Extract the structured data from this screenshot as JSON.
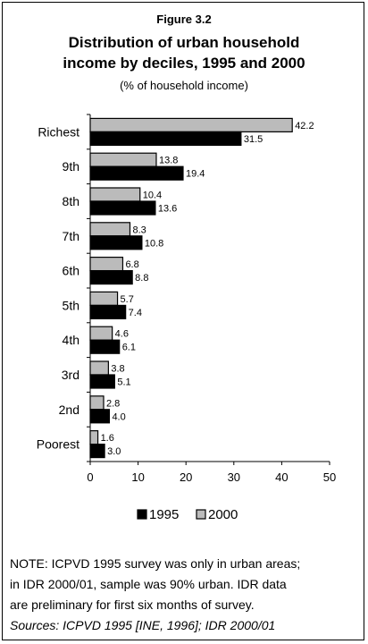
{
  "figure_label": "Figure 3.2",
  "title_line1": "Distribution of urban household",
  "title_line2": "income by deciles, 1995 and 2000",
  "subtitle": "(% of household income)",
  "chart_data": {
    "type": "bar",
    "orientation": "horizontal",
    "categories": [
      "Richest",
      "9th",
      "8th",
      "7th",
      "6th",
      "5th",
      "4th",
      "3rd",
      "2nd",
      "Poorest"
    ],
    "series": [
      {
        "name": "2000",
        "color": "#bbbbbb",
        "values": [
          42.2,
          13.8,
          10.4,
          8.3,
          6.8,
          5.7,
          4.6,
          3.8,
          2.8,
          1.6
        ]
      },
      {
        "name": "1995",
        "color": "#000000",
        "values": [
          31.5,
          19.4,
          13.6,
          10.8,
          8.8,
          7.4,
          6.1,
          5.1,
          4.0,
          3.0
        ]
      }
    ],
    "x_ticks": [
      0,
      10,
      20,
      30,
      40,
      50
    ],
    "xlim": [
      0,
      50
    ],
    "legend_order": [
      "1995",
      "2000"
    ],
    "legend_position": "bottom",
    "grid": false
  },
  "note_lines": [
    "NOTE: ICPVD 1995 survey was only in urban areas;",
    "in IDR 2000/01, sample was 90% urban.  IDR data",
    "are preliminary for first six months of survey."
  ],
  "sources": "Sources: ICPVD 1995 [INE, 1996]; IDR 2000/01"
}
